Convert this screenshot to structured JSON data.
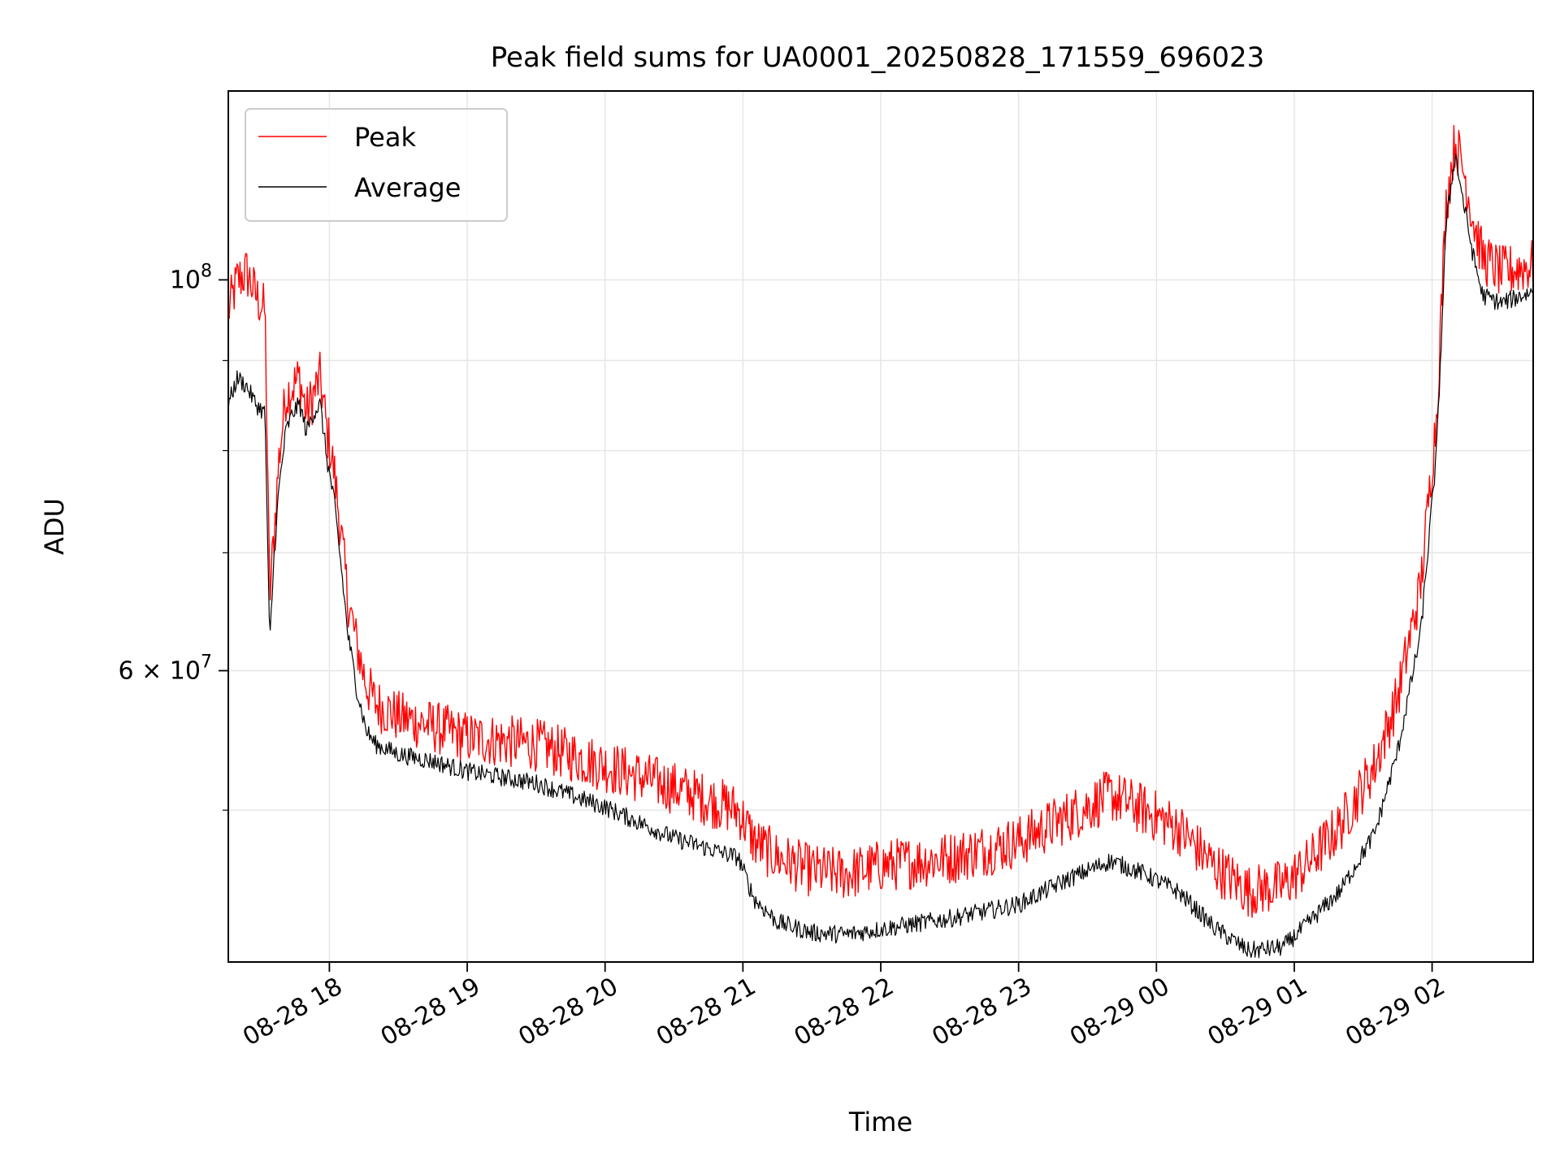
{
  "chart_data": {
    "type": "line",
    "title": "Peak field sums for UA0001_20250828_171559_696023",
    "xlabel": "Time",
    "ylabel": "ADU",
    "yscale": "log",
    "ylim": [
      41000000,
      128000000
    ],
    "xlim": [
      "2025-08-28 17:16",
      "2025-08-29 02:44"
    ],
    "x_ticks": [
      "2025-08-28 18:00",
      "2025-08-28 19:00",
      "2025-08-28 20:00",
      "2025-08-28 21:00",
      "2025-08-28 22:00",
      "2025-08-28 23:00",
      "2025-08-29 00:00",
      "2025-08-29 01:00",
      "2025-08-29 02:00"
    ],
    "x_tick_labels": [
      "08-28 18",
      "08-28 19",
      "08-28 20",
      "08-28 21",
      "08-28 22",
      "08-28 23",
      "08-29 00",
      "08-29 01",
      "08-29 02"
    ],
    "y_major_ticks": [
      {
        "value": 100000000,
        "base": "10",
        "exp": "8"
      },
      {
        "value": 60000000,
        "mantissa": "6",
        "base": "10",
        "exp": "7"
      }
    ],
    "y_minor_ticks": [
      50000000,
      70000000,
      80000000,
      90000000
    ],
    "grid": true,
    "legend_position": "upper-left",
    "series": [
      {
        "name": "Peak",
        "color": "#ff0000",
        "x": [
          "2025-08-28 17:16",
          "2025-08-28 17:20",
          "2025-08-28 17:24",
          "2025-08-28 17:28",
          "2025-08-28 17:32",
          "2025-08-28 17:34",
          "2025-08-28 17:36",
          "2025-08-28 17:38",
          "2025-08-28 17:41",
          "2025-08-28 17:44",
          "2025-08-28 17:47",
          "2025-08-28 17:50",
          "2025-08-28 17:53",
          "2025-08-28 17:56",
          "2025-08-28 17:59",
          "2025-08-28 18:02",
          "2025-08-28 18:05",
          "2025-08-28 18:08",
          "2025-08-28 18:12",
          "2025-08-28 18:16",
          "2025-08-28 18:20",
          "2025-08-28 18:30",
          "2025-08-28 18:45",
          "2025-08-28 19:00",
          "2025-08-28 19:30",
          "2025-08-28 20:00",
          "2025-08-28 20:30",
          "2025-08-28 20:58",
          "2025-08-28 21:05",
          "2025-08-28 21:15",
          "2025-08-28 21:30",
          "2025-08-28 21:45",
          "2025-08-28 22:00",
          "2025-08-28 22:30",
          "2025-08-28 23:00",
          "2025-08-28 23:20",
          "2025-08-28 23:40",
          "2025-08-28 23:55",
          "2025-08-29 00:10",
          "2025-08-29 00:25",
          "2025-08-29 00:40",
          "2025-08-29 00:55",
          "2025-08-29 01:05",
          "2025-08-29 01:20",
          "2025-08-29 01:35",
          "2025-08-29 01:45",
          "2025-08-29 01:55",
          "2025-08-29 02:02",
          "2025-08-29 02:06",
          "2025-08-29 02:10",
          "2025-08-29 02:14",
          "2025-08-29 02:18",
          "2025-08-29 02:22",
          "2025-08-29 02:30",
          "2025-08-29 02:44"
        ],
        "values": [
          96000000,
          100000000,
          101000000,
          98000000,
          96000000,
          66000000,
          72000000,
          79000000,
          86000000,
          87000000,
          88000000,
          84000000,
          86000000,
          88000000,
          82000000,
          78000000,
          72000000,
          66000000,
          62000000,
          59000000,
          57500000,
          56500000,
          55800000,
          55000000,
          54500000,
          53000000,
          51500000,
          50000000,
          48000000,
          47000000,
          46200000,
          46000000,
          46500000,
          47000000,
          48000000,
          49500000,
          51000000,
          50000000,
          48800000,
          46500000,
          45000000,
          45300000,
          46500000,
          49000000,
          53000000,
          58000000,
          67000000,
          84000000,
          110000000,
          120000000,
          115000000,
          108000000,
          103000000,
          101000000,
          102000000
        ]
      },
      {
        "name": "Average",
        "color": "#000000",
        "x": [
          "2025-08-28 17:16",
          "2025-08-28 17:20",
          "2025-08-28 17:24",
          "2025-08-28 17:28",
          "2025-08-28 17:32",
          "2025-08-28 17:34",
          "2025-08-28 17:36",
          "2025-08-28 17:38",
          "2025-08-28 17:41",
          "2025-08-28 17:44",
          "2025-08-28 17:47",
          "2025-08-28 17:50",
          "2025-08-28 17:53",
          "2025-08-28 17:56",
          "2025-08-28 17:59",
          "2025-08-28 18:02",
          "2025-08-28 18:05",
          "2025-08-28 18:08",
          "2025-08-28 18:12",
          "2025-08-28 18:16",
          "2025-08-28 18:20",
          "2025-08-28 18:30",
          "2025-08-28 18:45",
          "2025-08-28 19:00",
          "2025-08-28 19:30",
          "2025-08-28 20:00",
          "2025-08-28 20:30",
          "2025-08-28 20:58",
          "2025-08-28 21:05",
          "2025-08-28 21:15",
          "2025-08-28 21:30",
          "2025-08-28 21:45",
          "2025-08-28 22:00",
          "2025-08-28 22:30",
          "2025-08-28 23:00",
          "2025-08-28 23:20",
          "2025-08-28 23:40",
          "2025-08-28 23:55",
          "2025-08-29 00:10",
          "2025-08-29 00:25",
          "2025-08-29 00:40",
          "2025-08-29 00:55",
          "2025-08-29 01:05",
          "2025-08-29 01:20",
          "2025-08-29 01:35",
          "2025-08-29 01:45",
          "2025-08-29 01:55",
          "2025-08-29 02:02",
          "2025-08-29 02:06",
          "2025-08-29 02:10",
          "2025-08-29 02:14",
          "2025-08-29 02:18",
          "2025-08-29 02:22",
          "2025-08-29 02:30",
          "2025-08-29 02:44"
        ],
        "values": [
          85000000,
          88000000,
          87000000,
          85000000,
          84000000,
          62000000,
          70000000,
          76000000,
          82000000,
          84000000,
          85000000,
          82000000,
          84000000,
          85000000,
          79000000,
          75000000,
          69000000,
          63000000,
          58500000,
          55500000,
          54500000,
          53800000,
          53300000,
          52600000,
          51800000,
          50200000,
          48200000,
          47000000,
          44500000,
          43200000,
          42600000,
          42500000,
          42800000,
          43400000,
          44200000,
          45600000,
          46800000,
          46000000,
          44900000,
          42900000,
          41600000,
          41800000,
          43000000,
          45000000,
          48500000,
          54000000,
          63000000,
          80000000,
          107000000,
          118000000,
          110000000,
          103000000,
          98000000,
          97000000,
          98500000
        ]
      }
    ]
  }
}
